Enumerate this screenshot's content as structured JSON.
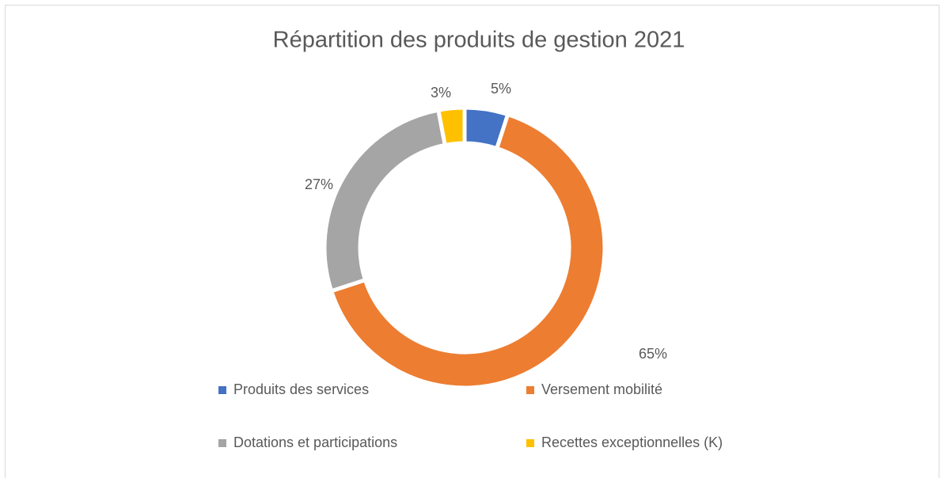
{
  "chart_data": {
    "type": "donut",
    "title": "Répartition des produits de gestion 2021",
    "categories": [
      "Produits des services",
      "Versement mobilité",
      "Dotations et participations",
      "Recettes exceptionnelles (K)"
    ],
    "values": [
      5,
      65,
      27,
      3
    ],
    "value_labels": [
      "5%",
      "65%",
      "27%",
      "3%"
    ],
    "colors": [
      "#4472c4",
      "#ed7d31",
      "#a5a5a5",
      "#ffc000"
    ],
    "legend": "bottom"
  }
}
